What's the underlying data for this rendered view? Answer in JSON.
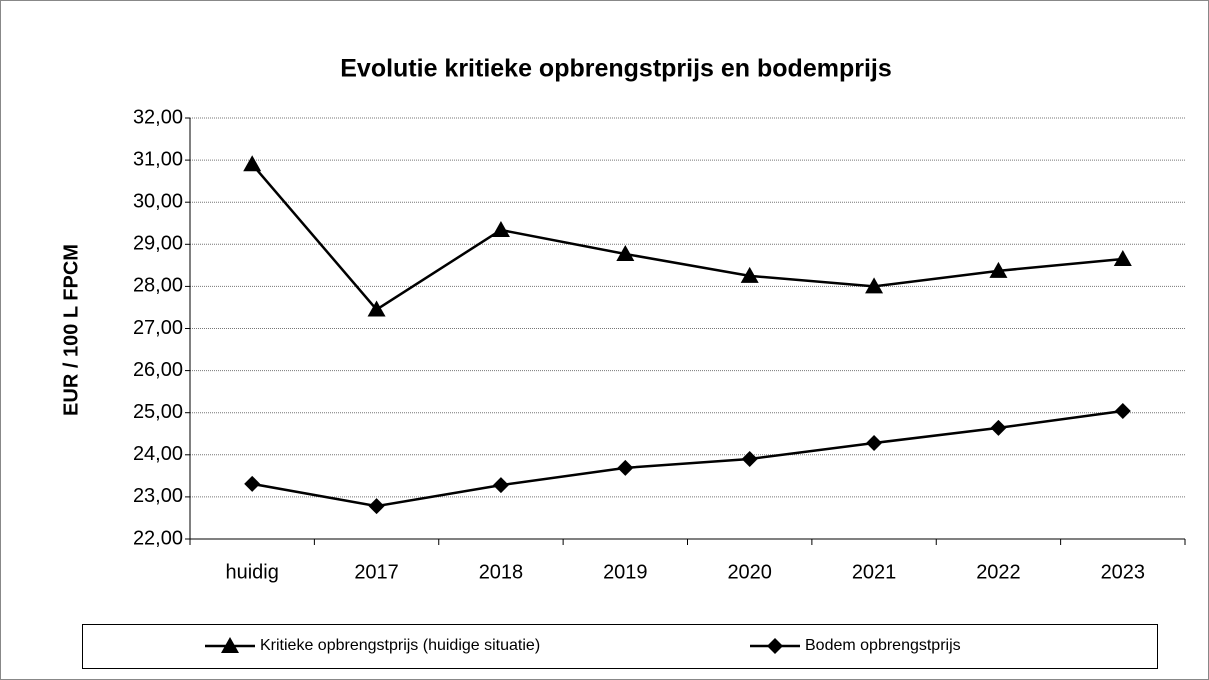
{
  "chart_data": {
    "type": "line",
    "title": "Evolutie kritieke opbrengstprijs en bodemprijs",
    "y_label": "EUR / 100 L FPCM",
    "categories": [
      "huidig",
      "2017",
      "2018",
      "2019",
      "2020",
      "2021",
      "2022",
      "2023"
    ],
    "series": [
      {
        "name": "Kritieke opbrengstprijs (huidige situatie)",
        "color": "#000000",
        "marker": "triangle",
        "values": [
          30.9,
          27.45,
          29.34,
          28.77,
          28.25,
          28.0,
          28.37,
          28.65
        ]
      },
      {
        "name": "Bodem opbrengstprijs",
        "color": "#000000",
        "marker": "diamond",
        "values": [
          23.31,
          22.78,
          23.28,
          23.69,
          23.9,
          24.28,
          24.64,
          25.04
        ]
      }
    ],
    "ylim": [
      22,
      32
    ],
    "yticks": [
      {
        "value": 22,
        "label": "22,00"
      },
      {
        "value": 23,
        "label": "23,00"
      },
      {
        "value": 24,
        "label": "24,00"
      },
      {
        "value": 25,
        "label": "25,00"
      },
      {
        "value": 26,
        "label": "26,00"
      },
      {
        "value": 27,
        "label": "27,00"
      },
      {
        "value": 28,
        "label": "28,00"
      },
      {
        "value": 29,
        "label": "29,00"
      },
      {
        "value": 30,
        "label": "30,00"
      },
      {
        "value": 31,
        "label": "31,00"
      },
      {
        "value": 32,
        "label": "32,00"
      }
    ],
    "grid": true,
    "legend": "bottom"
  }
}
